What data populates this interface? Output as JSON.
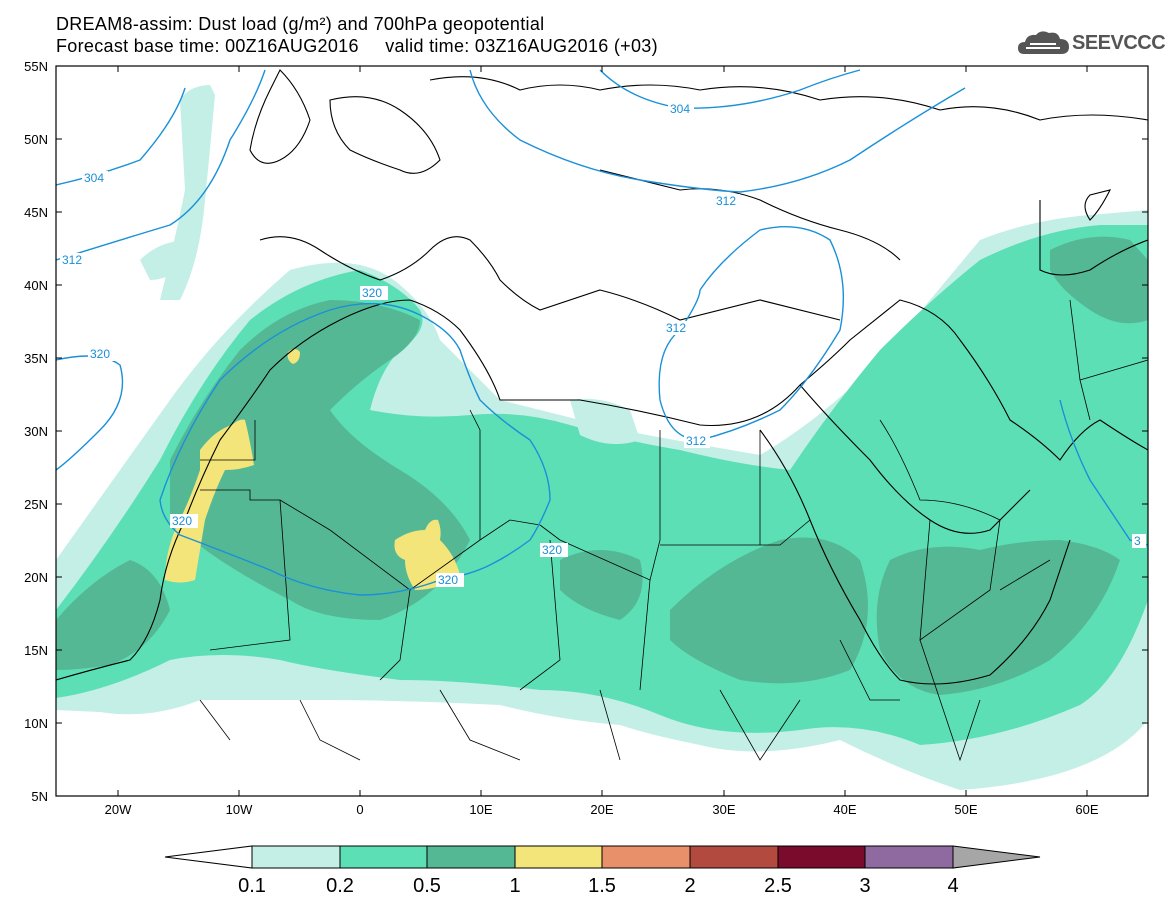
{
  "header": {
    "title_line1": "DREAM8-assim: Dust load (g/m²) and 700hPa geopotential",
    "title_line2": "Forecast base time: 00Z16AUG2016     valid time: 03Z16AUG2016 (+03)",
    "logo_text": "SEEVCCC"
  },
  "axes": {
    "lat_labels": [
      "55N",
      "50N",
      "45N",
      "40N",
      "35N",
      "30N",
      "25N",
      "20N",
      "15N",
      "10N",
      "5N"
    ],
    "lon_labels": [
      "20W",
      "10W",
      "0",
      "10E",
      "20E",
      "30E",
      "40E",
      "50E",
      "60E"
    ]
  },
  "contours": {
    "labels": [
      "304",
      "304",
      "312",
      "312",
      "312",
      "312",
      "320",
      "320",
      "320",
      "320",
      "320",
      "3"
    ]
  },
  "colorbar": {
    "levels": [
      "0.1",
      "0.2",
      "0.5",
      "1",
      "1.5",
      "2",
      "2.5",
      "3",
      "4"
    ],
    "colors": [
      "#c3efe6",
      "#5ddfb6",
      "#55b895",
      "#f3e57a",
      "#e8906a",
      "#b34a40",
      "#7a0b2c",
      "#8e6aa0"
    ],
    "below_color": "#ffffff",
    "above_color": "#a6a6a6"
  },
  "colors": {
    "land_outline": "#000000",
    "contour": "#1a90d8",
    "dust_low": "#c3efe6",
    "dust_mid": "#5ddfb6",
    "dust_high": "#55b895",
    "dust_peak": "#f3e57a"
  }
}
